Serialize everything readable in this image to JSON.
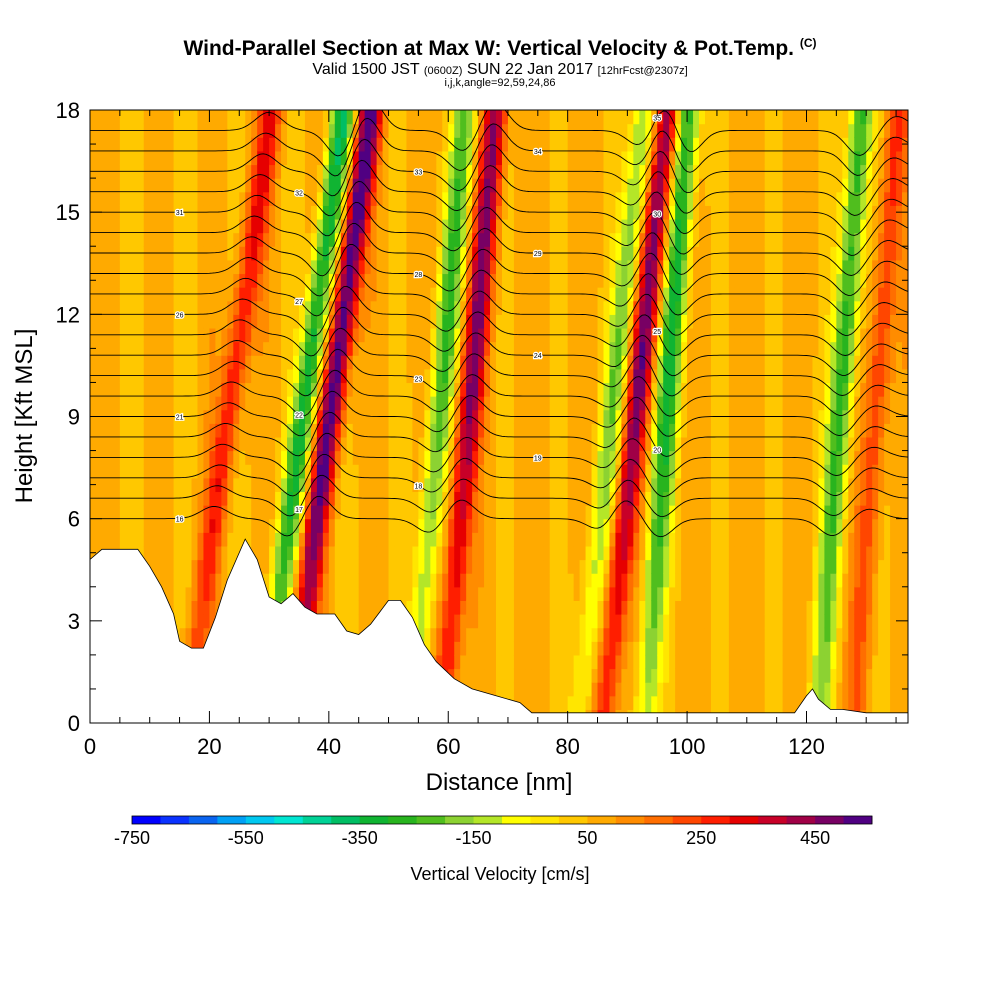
{
  "header": {
    "title": "Wind-Parallel Section at Max W: Vertical Velocity & Pot.Temp.",
    "title_mark": "(C)",
    "valid_prefix": "Valid 1500 JST",
    "valid_utc": "(0600Z)",
    "valid_date": "SUN 22 Jan 2017",
    "forecast": "[12hrFcst@2307z]",
    "indices": "i,j,k,angle=92,59,24,86"
  },
  "chart_data": {
    "type": "heatmap",
    "xlabel": "Distance [nm]",
    "ylabel": "Height [Kft MSL]",
    "xlim": [
      0,
      137
    ],
    "ylim": [
      0,
      18
    ],
    "x_ticks": [
      0,
      20,
      40,
      60,
      80,
      100,
      120
    ],
    "y_ticks": [
      0,
      3,
      6,
      9,
      12,
      15,
      18
    ],
    "colorbar": {
      "label": "Vertical Velocity [cm/s]",
      "min": -750,
      "max": 550,
      "step": 50,
      "tick_labels": [
        -750,
        -550,
        -350,
        -150,
        50,
        250,
        450
      ],
      "colors": [
        "#0000ff",
        "#0a32ff",
        "#0a64f0",
        "#00a0f5",
        "#00c8f0",
        "#00e6d2",
        "#00d296",
        "#00be64",
        "#10b432",
        "#28b41e",
        "#50be1e",
        "#8cd232",
        "#b4e628",
        "#ffff00",
        "#ffe600",
        "#ffc800",
        "#ffaa00",
        "#ff8c00",
        "#ff6e00",
        "#ff4600",
        "#ff1e00",
        "#e60000",
        "#c80028",
        "#a00046",
        "#780064",
        "#500082"
      ]
    },
    "waves": [
      {
        "x_base": 16,
        "slope": 0.8,
        "amplitude": 250
      },
      {
        "x_base": 29,
        "slope": 0.75,
        "amplitude": -400
      },
      {
        "x_base": 33.5,
        "slope": 0.75,
        "amplitude": 500
      },
      {
        "x_base": 54,
        "slope": 0.5,
        "amplitude": -300
      },
      {
        "x_base": 59,
        "slope": 0.5,
        "amplitude": 400
      },
      {
        "x_base": 82,
        "slope": 0.6,
        "amplitude": -250
      },
      {
        "x_base": 86,
        "slope": 0.6,
        "amplitude": 420
      },
      {
        "x_base": 93,
        "slope": 0.4,
        "amplitude": -380
      },
      {
        "x_base": 122,
        "slope": 0.4,
        "amplitude": -350
      },
      {
        "x_base": 128,
        "slope": 0.4,
        "amplitude": 200
      }
    ],
    "terrain": [
      [
        0,
        4.8
      ],
      [
        2,
        5.1
      ],
      [
        8,
        5.1
      ],
      [
        10,
        4.6
      ],
      [
        12,
        4
      ],
      [
        14,
        3.2
      ],
      [
        15,
        2.4
      ],
      [
        17,
        2.2
      ],
      [
        19,
        2.2
      ],
      [
        21,
        3.1
      ],
      [
        23,
        4.2
      ],
      [
        26,
        5.4
      ],
      [
        28,
        4.8
      ],
      [
        30,
        3.7
      ],
      [
        32,
        3.5
      ],
      [
        34,
        3.8
      ],
      [
        36,
        3.4
      ],
      [
        38,
        3.2
      ],
      [
        41,
        3.2
      ],
      [
        43,
        2.7
      ],
      [
        45,
        2.6
      ],
      [
        47,
        2.9
      ],
      [
        50,
        3.6
      ],
      [
        52,
        3.6
      ],
      [
        54,
        3.1
      ],
      [
        56,
        2.3
      ],
      [
        58,
        1.8
      ],
      [
        61,
        1.3
      ],
      [
        64,
        1
      ],
      [
        68,
        0.8
      ],
      [
        72,
        0.6
      ],
      [
        74,
        0.3
      ],
      [
        80,
        0.3
      ],
      [
        90,
        0.3
      ],
      [
        100,
        0.3
      ],
      [
        110,
        0.3
      ],
      [
        118,
        0.3
      ],
      [
        120,
        0.8
      ],
      [
        121,
        1
      ],
      [
        122,
        0.7
      ],
      [
        124,
        0.4
      ],
      [
        126,
        0.4
      ],
      [
        130,
        0.3
      ],
      [
        137,
        0.3
      ]
    ],
    "contour_levels": {
      "lowest": 6,
      "spacing_kft": 0.6,
      "count": 20,
      "labels": [
        "16",
        "17",
        "18",
        "19",
        "20",
        "21",
        "22",
        "23",
        "24",
        "25",
        "26",
        "27",
        "28",
        "29",
        "30",
        "31",
        "32",
        "33",
        "34",
        "35"
      ]
    }
  }
}
